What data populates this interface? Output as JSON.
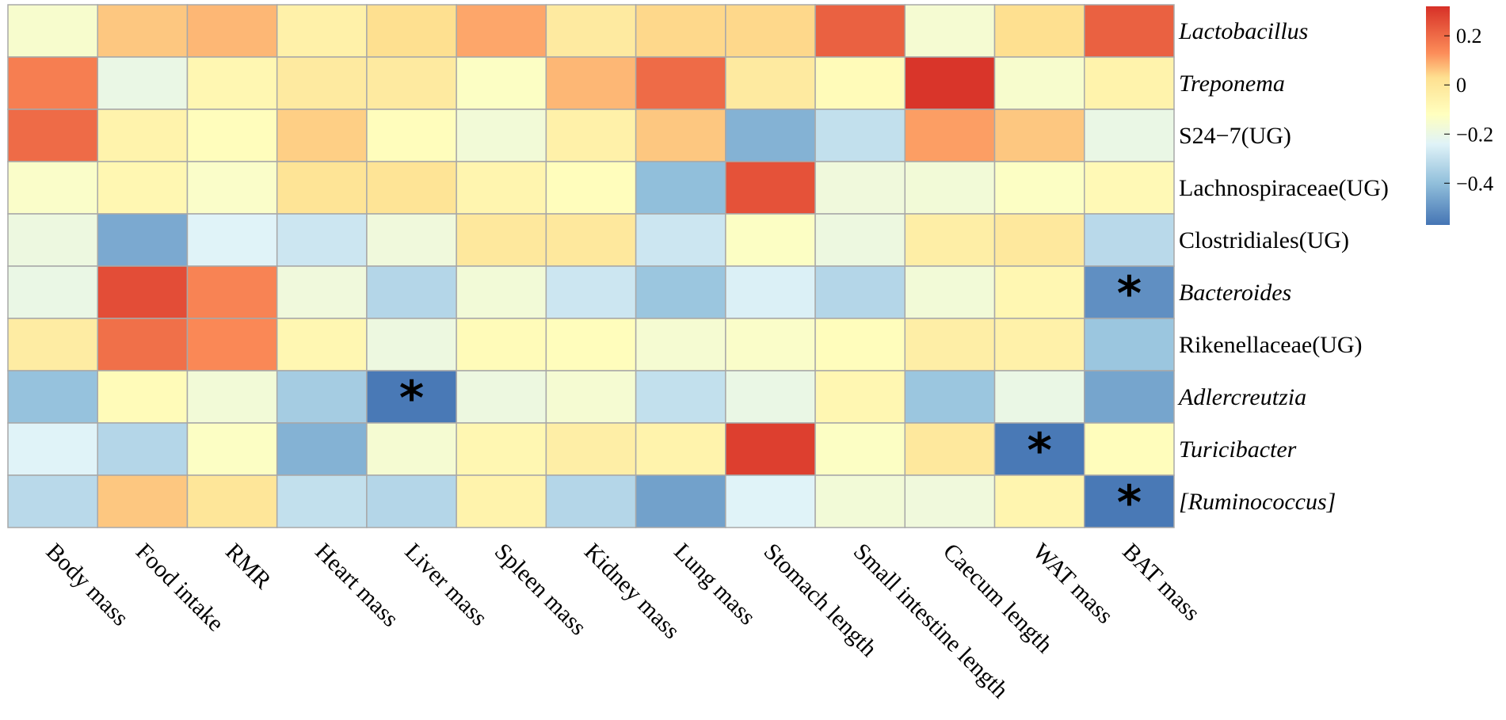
{
  "chart_data": {
    "type": "heatmap",
    "rows": [
      {
        "label": "Lactobacillus",
        "italic": true
      },
      {
        "label": "Treponema",
        "italic": true
      },
      {
        "label": "S24−7(UG)",
        "italic": false
      },
      {
        "label": "Lachnospiraceae(UG)",
        "italic": false
      },
      {
        "label": "Clostridiales(UG)",
        "italic": false
      },
      {
        "label": "Bacteroides",
        "italic": true
      },
      {
        "label": "Rikenellaceae(UG)",
        "italic": false
      },
      {
        "label": "Adlercreutzia",
        "italic": true
      },
      {
        "label": "Turicibacter",
        "italic": true
      },
      {
        "label": "[Ruminococcus]",
        "italic": true
      }
    ],
    "columns": [
      "Body mass",
      "Food intake",
      "RMR",
      "Heart mass",
      "Liver mass",
      "Spleen mass",
      "Kidney mass",
      "Lung mass",
      "Stomach length",
      "Small intestine length",
      "Caecum length",
      "WAT mass",
      "BAT mass"
    ],
    "values": [
      [
        -0.15,
        0.06,
        0.08,
        -0.05,
        0.03,
        0.1,
        -0.02,
        0.04,
        0.04,
        0.22,
        -0.16,
        0.03,
        0.22
      ],
      [
        0.16,
        -0.2,
        -0.08,
        -0.02,
        -0.02,
        -0.13,
        0.08,
        0.2,
        -0.02,
        -0.1,
        0.31,
        -0.15,
        -0.06
      ],
      [
        0.2,
        -0.06,
        -0.11,
        0.05,
        -0.11,
        -0.17,
        -0.05,
        0.06,
        -0.43,
        -0.3,
        0.11,
        0.06,
        -0.2
      ],
      [
        -0.14,
        -0.08,
        -0.14,
        0.01,
        0.01,
        -0.07,
        -0.11,
        -0.4,
        0.25,
        -0.18,
        -0.17,
        -0.13,
        -0.09
      ],
      [
        -0.19,
        -0.45,
        -0.24,
        -0.28,
        -0.18,
        -0.01,
        -0.01,
        -0.28,
        -0.13,
        -0.19,
        -0.04,
        -0.01,
        -0.32
      ],
      [
        -0.2,
        0.26,
        0.15,
        -0.18,
        -0.33,
        -0.17,
        -0.28,
        -0.38,
        -0.25,
        -0.33,
        -0.17,
        -0.08,
        -0.51
      ],
      [
        -0.03,
        0.19,
        0.14,
        -0.08,
        -0.19,
        -0.1,
        -0.11,
        -0.16,
        -0.14,
        -0.11,
        -0.04,
        -0.05,
        -0.38
      ],
      [
        -0.39,
        -0.1,
        -0.17,
        -0.36,
        -0.56,
        -0.19,
        -0.16,
        -0.3,
        -0.2,
        -0.08,
        -0.38,
        -0.2,
        -0.46
      ],
      [
        -0.24,
        -0.33,
        -0.13,
        -0.43,
        -0.16,
        -0.08,
        -0.04,
        -0.06,
        0.29,
        -0.13,
        -0.01,
        -0.56,
        -0.11
      ],
      [
        -0.32,
        0.06,
        0.0,
        -0.3,
        -0.33,
        -0.06,
        -0.33,
        -0.47,
        -0.24,
        -0.17,
        -0.18,
        -0.07,
        -0.56
      ]
    ],
    "significant": [
      [
        5,
        12
      ],
      [
        7,
        4
      ],
      [
        8,
        11
      ],
      [
        9,
        12
      ]
    ],
    "significance_symbol": "*",
    "legend": {
      "min": -0.57,
      "max": 0.32,
      "ticks": [
        {
          "value": 0.2,
          "label": "0.2"
        },
        {
          "value": 0.0,
          "label": "0"
        },
        {
          "value": -0.2,
          "label": "−0.2"
        },
        {
          "value": -0.4,
          "label": "−0.4"
        }
      ],
      "placement": "right"
    },
    "colors": {
      "stops": [
        {
          "value": -0.57,
          "color": "#4575b4"
        },
        {
          "value": -0.4,
          "color": "#91bfdb"
        },
        {
          "value": -0.24,
          "color": "#e0f3f8"
        },
        {
          "value": -0.12,
          "color": "#ffffbf"
        },
        {
          "value": 0.03,
          "color": "#fee090"
        },
        {
          "value": 0.13,
          "color": "#fc8d59"
        },
        {
          "value": 0.32,
          "color": "#d73027"
        }
      ],
      "gridline": "#a8a8a8",
      "text": "#000000"
    }
  }
}
